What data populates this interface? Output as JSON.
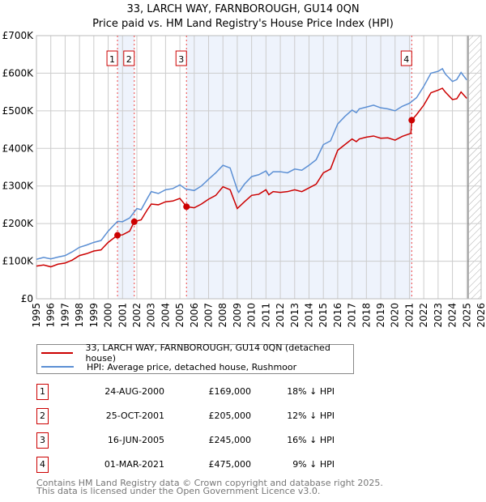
{
  "chart_data": {
    "type": "line",
    "title": "33, LARCH WAY, FARNBOROUGH, GU14 0QN",
    "subtitle": "Price paid vs. HM Land Registry's House Price Index (HPI)",
    "xlim": [
      1995,
      2026
    ],
    "ylim": [
      0,
      700000
    ],
    "y_ticks": [
      {
        "v": 0,
        "label": "£0"
      },
      {
        "v": 100000,
        "label": "£100K"
      },
      {
        "v": 200000,
        "label": "£200K"
      },
      {
        "v": 300000,
        "label": "£300K"
      },
      {
        "v": 400000,
        "label": "£400K"
      },
      {
        "v": 500000,
        "label": "£500K"
      },
      {
        "v": 600000,
        "label": "£600K"
      },
      {
        "v": 700000,
        "label": "£700K"
      }
    ],
    "x_ticks": [
      "1995",
      "1996",
      "1997",
      "1998",
      "1999",
      "2000",
      "2001",
      "2002",
      "2003",
      "2004",
      "2005",
      "2006",
      "2007",
      "2008",
      "2009",
      "2010",
      "2011",
      "2012",
      "2013",
      "2014",
      "2015",
      "2016",
      "2017",
      "2018",
      "2019",
      "2020",
      "2021",
      "2022",
      "2023",
      "2024",
      "2025",
      "2026"
    ],
    "grid": true,
    "shaded_ranges": [
      [
        2000.65,
        2001.82
      ],
      [
        2005.46,
        2021.16
      ]
    ],
    "forecast_hatch_from": 2025.15,
    "series": [
      {
        "name": "33, LARCH WAY, FARNBOROUGH, GU14 0QN (detached house)",
        "color": "#cc0000",
        "x": [
          1995,
          1995.5,
          1996,
          1996.5,
          1997,
          1997.5,
          1998,
          1998.5,
          1999,
          1999.5,
          2000,
          2000.65,
          2001,
          2001.5,
          2001.82,
          2002.3,
          2002.7,
          2003,
          2003.5,
          2004,
          2004.5,
          2005,
          2005.46,
          2006,
          2006.5,
          2007,
          2007.5,
          2008,
          2008.5,
          2009,
          2009.5,
          2010,
          2010.5,
          2011,
          2011.2,
          2011.5,
          2012,
          2012.5,
          2013,
          2013.5,
          2014,
          2014.5,
          2015,
          2015.5,
          2016,
          2016.5,
          2017,
          2017.3,
          2017.5,
          2018,
          2018.5,
          2019,
          2019.5,
          2020,
          2020.5,
          2021.1,
          2021.16,
          2021.5,
          2022,
          2022.5,
          2023,
          2023.3,
          2023.5,
          2024,
          2024.3,
          2024.6,
          2025
        ],
        "y": [
          87000,
          90000,
          85000,
          92000,
          95000,
          103000,
          115000,
          120000,
          127000,
          130000,
          150000,
          169000,
          170000,
          180000,
          205000,
          210000,
          235000,
          252000,
          250000,
          258000,
          260000,
          267000,
          245000,
          242000,
          252000,
          265000,
          275000,
          298000,
          290000,
          240000,
          258000,
          275000,
          278000,
          290000,
          277000,
          285000,
          283000,
          285000,
          290000,
          285000,
          295000,
          305000,
          335000,
          345000,
          395000,
          410000,
          425000,
          418000,
          425000,
          430000,
          433000,
          427000,
          428000,
          422000,
          432000,
          440000,
          475000,
          490000,
          515000,
          548000,
          555000,
          560000,
          550000,
          530000,
          532000,
          550000,
          533000
        ]
      },
      {
        "name": "HPI: Average price, detached house, Rushmoor",
        "color": "#5b8fd4",
        "x": [
          1995,
          1995.5,
          1996,
          1996.5,
          1997,
          1997.5,
          1998,
          1998.5,
          1999,
          1999.5,
          2000,
          2000.5,
          2000.65,
          2001,
          2001.5,
          2002,
          2002.3,
          2002.7,
          2003,
          2003.5,
          2004,
          2004.5,
          2005,
          2005.4,
          2006,
          2006.5,
          2007,
          2007.5,
          2008,
          2008.5,
          2009,
          2009.1,
          2009.5,
          2010,
          2010.5,
          2011,
          2011.2,
          2011.5,
          2012,
          2012.5,
          2013,
          2013.5,
          2014,
          2014.5,
          2015,
          2015.5,
          2016,
          2016.5,
          2017,
          2017.3,
          2017.5,
          2018,
          2018.5,
          2019,
          2019.5,
          2020,
          2020.5,
          2021,
          2021.5,
          2022,
          2022.5,
          2023,
          2023.3,
          2023.5,
          2024,
          2024.3,
          2024.6,
          2025
        ],
        "y": [
          105000,
          110000,
          106000,
          111000,
          115000,
          125000,
          137000,
          143000,
          150000,
          155000,
          180000,
          200000,
          206000,
          205000,
          215000,
          240000,
          237000,
          265000,
          285000,
          280000,
          290000,
          293000,
          303000,
          292000,
          288000,
          300000,
          318000,
          335000,
          355000,
          348000,
          290000,
          283000,
          305000,
          325000,
          330000,
          340000,
          328000,
          338000,
          338000,
          335000,
          345000,
          342000,
          355000,
          370000,
          410000,
          420000,
          465000,
          485000,
          502000,
          495000,
          505000,
          510000,
          515000,
          508000,
          505000,
          500000,
          512000,
          520000,
          535000,
          565000,
          600000,
          605000,
          612000,
          598000,
          578000,
          583000,
          602000,
          582000
        ]
      }
    ],
    "sales": [
      {
        "num": "1",
        "x": 2000.65,
        "date": "24-AUG-2000",
        "price": 169000,
        "price_label": "£169,000",
        "hpi": "18% ↓ HPI"
      },
      {
        "num": "2",
        "x": 2001.82,
        "date": "25-OCT-2001",
        "price": 205000,
        "price_label": "£205,000",
        "hpi": "12% ↓ HPI"
      },
      {
        "num": "3",
        "x": 2005.46,
        "date": "16-JUN-2005",
        "price": 245000,
        "price_label": "£245,000",
        "hpi": "16% ↓ HPI"
      },
      {
        "num": "4",
        "x": 2021.16,
        "date": "01-MAR-2021",
        "price": 475000,
        "price_label": "£475,000",
        "hpi": "9% ↓ HPI"
      }
    ]
  },
  "footer": {
    "line1": "Contains HM Land Registry data © Crown copyright and database right 2025.",
    "line2": "This data is licensed under the Open Government Licence v3.0."
  }
}
